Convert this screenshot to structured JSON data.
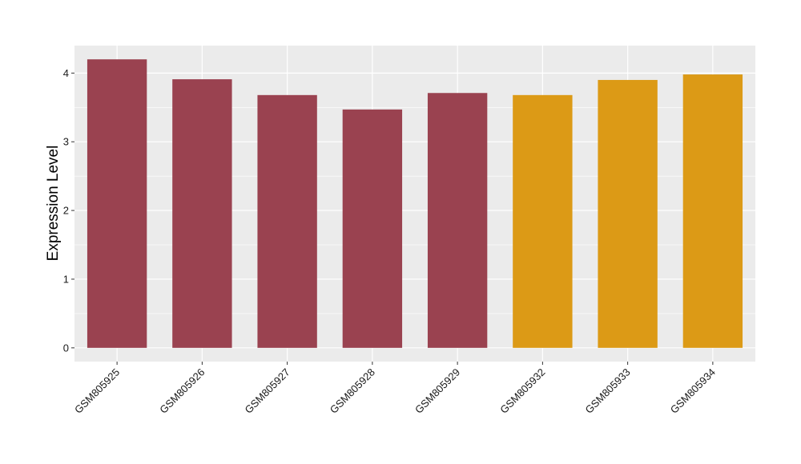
{
  "chart_data": {
    "type": "bar",
    "title": "",
    "xlabel": "",
    "ylabel": "Expression Level",
    "categories": [
      "GSM805925",
      "GSM805926",
      "GSM805927",
      "GSM805928",
      "GSM805929",
      "GSM805932",
      "GSM805933",
      "GSM805934"
    ],
    "values": [
      4.2,
      3.91,
      3.68,
      3.47,
      3.71,
      3.68,
      3.9,
      3.98
    ],
    "groups": [
      1,
      1,
      1,
      1,
      1,
      2,
      2,
      2
    ],
    "group_colors": [
      "#9a4250",
      "#dc9a16"
    ],
    "ylim": [
      -0.2,
      4.4
    ],
    "yticks": [
      0,
      1,
      2,
      3,
      4
    ],
    "grid": true,
    "panel_background": "#ebebeb",
    "legend": "none"
  }
}
